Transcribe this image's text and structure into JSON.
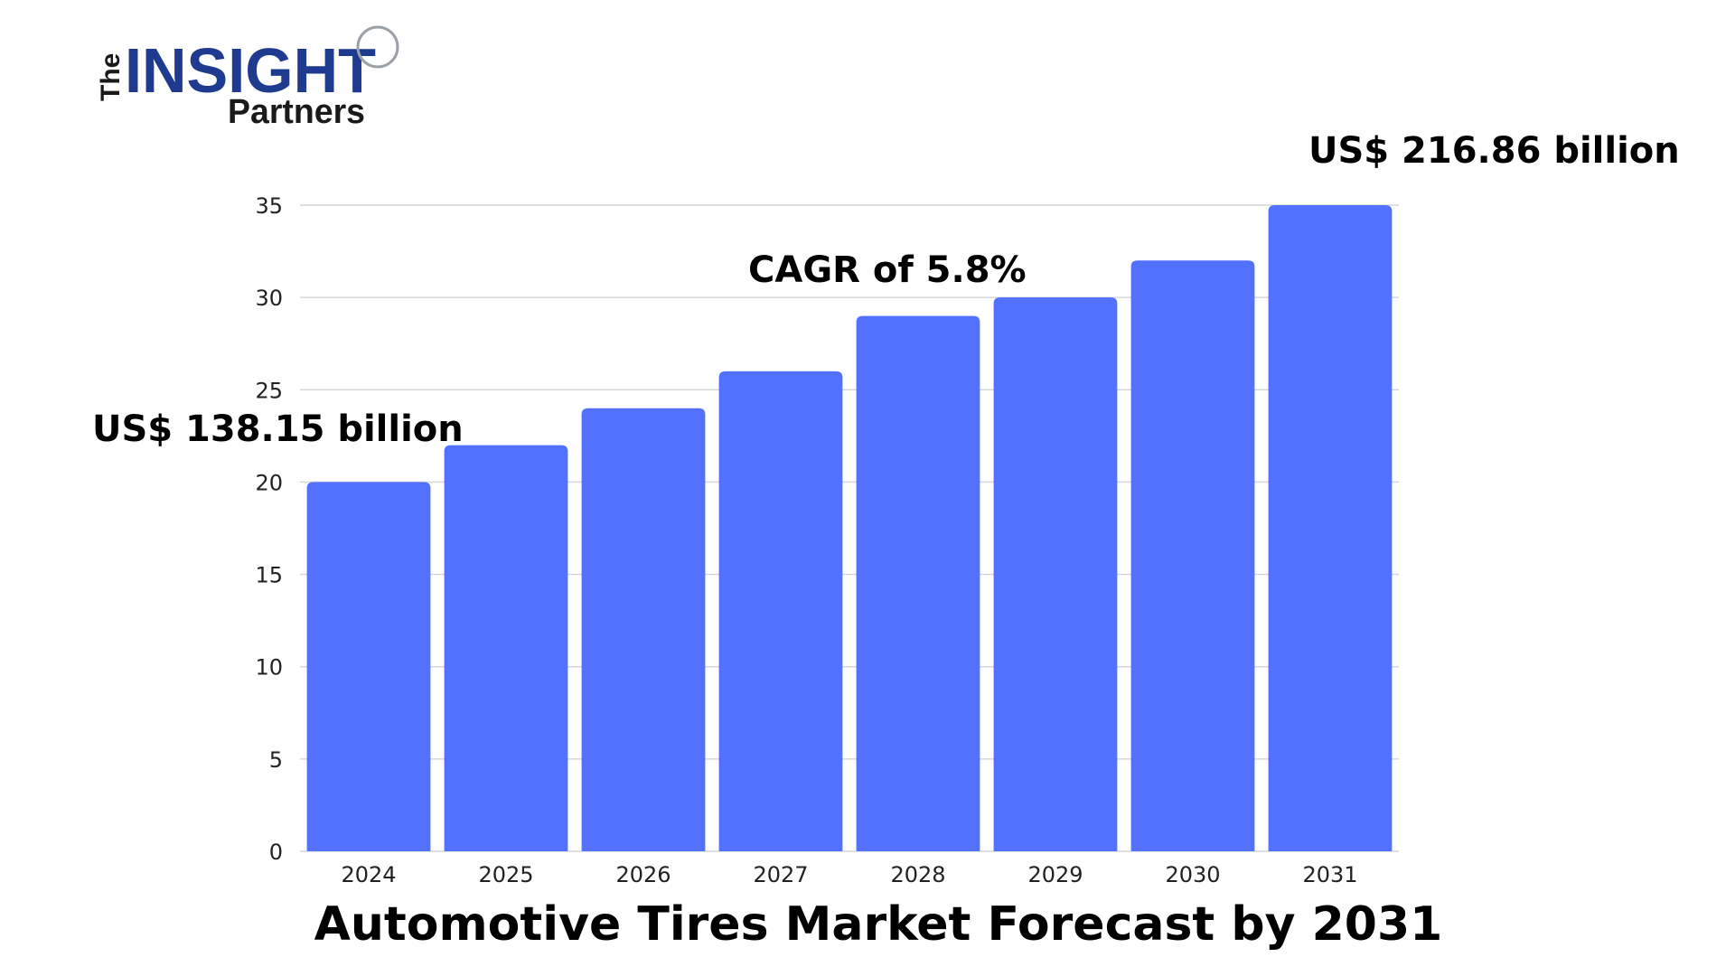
{
  "logo": {
    "the": "The",
    "insight": "INSIGHT",
    "partners": "Partners"
  },
  "chart_data": {
    "type": "bar",
    "title": "Automotive Tires Market Forecast by 2031",
    "categories": [
      "2024",
      "2025",
      "2026",
      "2027",
      "2028",
      "2029",
      "2030",
      "2031"
    ],
    "values": [
      20,
      22,
      24,
      26,
      29,
      30,
      32,
      35
    ],
    "ylim": [
      0,
      35
    ],
    "yticks": [
      0,
      5,
      10,
      15,
      20,
      25,
      30,
      35
    ],
    "grid": true,
    "bar_color": "#5271ff",
    "annotations": {
      "start": "US$ 138.15 billion",
      "cagr": "CAGR of 5.8%",
      "end": "US$ 216.86 billion"
    }
  }
}
